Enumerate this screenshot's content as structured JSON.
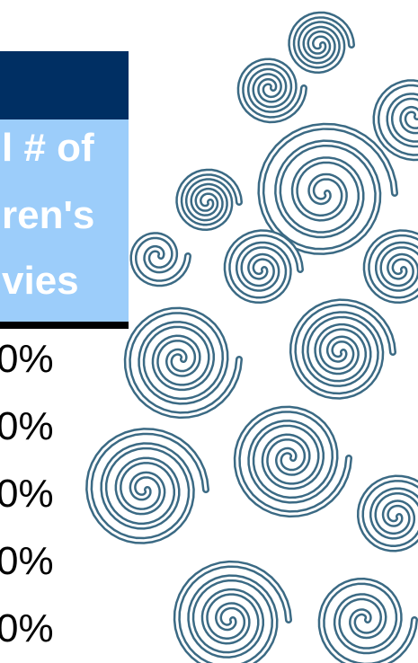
{
  "table": {
    "header": {
      "lines": [
        "l # of",
        "ren's",
        "vies"
      ]
    },
    "rows": [
      "0%",
      "0%",
      "0%",
      "0%",
      "0%"
    ]
  }
}
